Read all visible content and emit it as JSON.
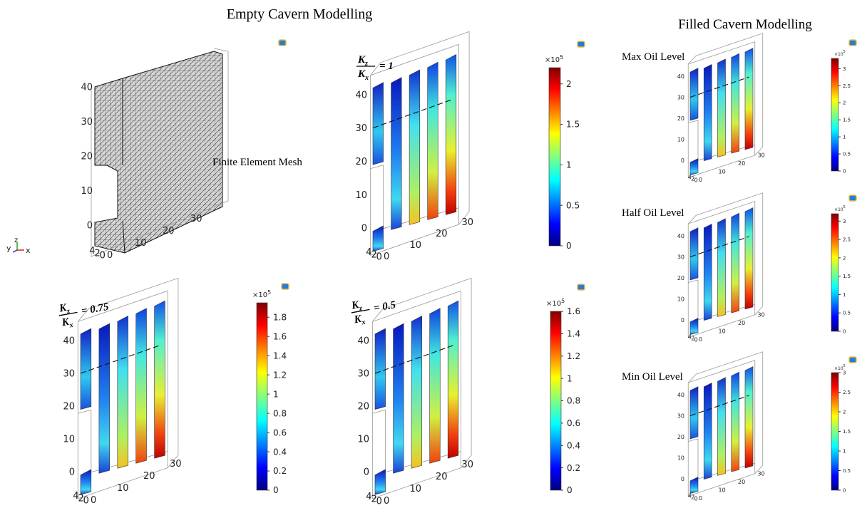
{
  "header": {
    "empty_title": "Empty Cavern Modelling",
    "filled_title": "Filled Cavern Modelling"
  },
  "triad": {
    "y": "y",
    "z": "z",
    "x": "x"
  },
  "panels": [
    {
      "label": "Finite Element Mesh",
      "z_ticks": [
        40,
        30,
        20,
        10,
        0
      ],
      "x_ticks": [
        0,
        10,
        20,
        30
      ],
      "y_ticks": [
        4,
        2,
        0
      ]
    },
    {
      "ratio": {
        "num": "K",
        "num_sub": "z",
        "den": "K",
        "den_sub": "x",
        "rhs": "= 1"
      },
      "z_ticks": [
        40,
        30,
        20,
        10,
        0
      ],
      "x_ticks": [
        0,
        10,
        20,
        30
      ],
      "y_ticks": [
        4,
        2,
        0
      ],
      "colorbar": {
        "multiplier": "×10",
        "exponent": "5",
        "lim": [
          0,
          2.2
        ],
        "ticks": [
          0,
          0.5,
          1,
          1.5,
          2
        ]
      }
    },
    {
      "ratio": {
        "num": "K",
        "num_sub": "z",
        "den": "K",
        "den_sub": "x",
        "rhs": "= 0.75"
      },
      "z_ticks": [
        40,
        30,
        20,
        10,
        0
      ],
      "x_ticks": [
        0,
        10,
        20,
        30
      ],
      "y_ticks": [
        4,
        2,
        0
      ],
      "colorbar": {
        "multiplier": "×10",
        "exponent": "5",
        "lim": [
          0,
          1.95
        ],
        "ticks": [
          0,
          0.2,
          0.4,
          0.6,
          0.8,
          1,
          1.2,
          1.4,
          1.6,
          1.8
        ]
      }
    },
    {
      "ratio": {
        "num": "K",
        "num_sub": "z",
        "den": "K",
        "den_sub": "x",
        "rhs": "= 0.5"
      },
      "z_ticks": [
        40,
        30,
        20,
        10,
        0
      ],
      "x_ticks": [
        0,
        10,
        20,
        30
      ],
      "y_ticks": [
        4,
        2,
        0
      ],
      "colorbar": {
        "multiplier": "×10",
        "exponent": "5",
        "lim": [
          0,
          1.6
        ],
        "ticks": [
          0,
          0.2,
          0.4,
          0.6,
          0.8,
          1,
          1.2,
          1.4,
          1.6
        ]
      }
    },
    {
      "title": "Max Oil Level",
      "z_ticks": [
        40,
        30,
        20,
        10,
        0
      ],
      "x_ticks": [
        0,
        10,
        20,
        30
      ],
      "y_ticks": [
        4,
        2,
        0
      ],
      "colorbar": {
        "multiplier": "×10",
        "exponent": "5",
        "lim": [
          0,
          3.3
        ],
        "ticks": [
          0,
          0.5,
          1,
          1.5,
          2,
          2.5,
          3
        ]
      }
    },
    {
      "title": "Half Oil Level",
      "z_ticks": [
        40,
        30,
        20,
        10,
        0
      ],
      "x_ticks": [
        0,
        10,
        20,
        30
      ],
      "y_ticks": [
        4,
        2,
        0
      ],
      "colorbar": {
        "multiplier": "×10",
        "exponent": "5",
        "lim": [
          0,
          3.2
        ],
        "ticks": [
          0,
          0.5,
          1,
          1.5,
          2,
          2.5,
          3
        ]
      }
    },
    {
      "title": "Min Oil Level",
      "z_ticks": [
        40,
        30,
        20,
        10,
        0
      ],
      "x_ticks": [
        0,
        10,
        20,
        30
      ],
      "y_ticks": [
        4,
        2,
        0
      ],
      "colorbar": {
        "multiplier": "×10",
        "exponent": "5",
        "lim": [
          0,
          3
        ],
        "ticks": [
          0,
          0.5,
          1,
          1.5,
          2,
          2.5,
          3
        ]
      }
    }
  ]
}
